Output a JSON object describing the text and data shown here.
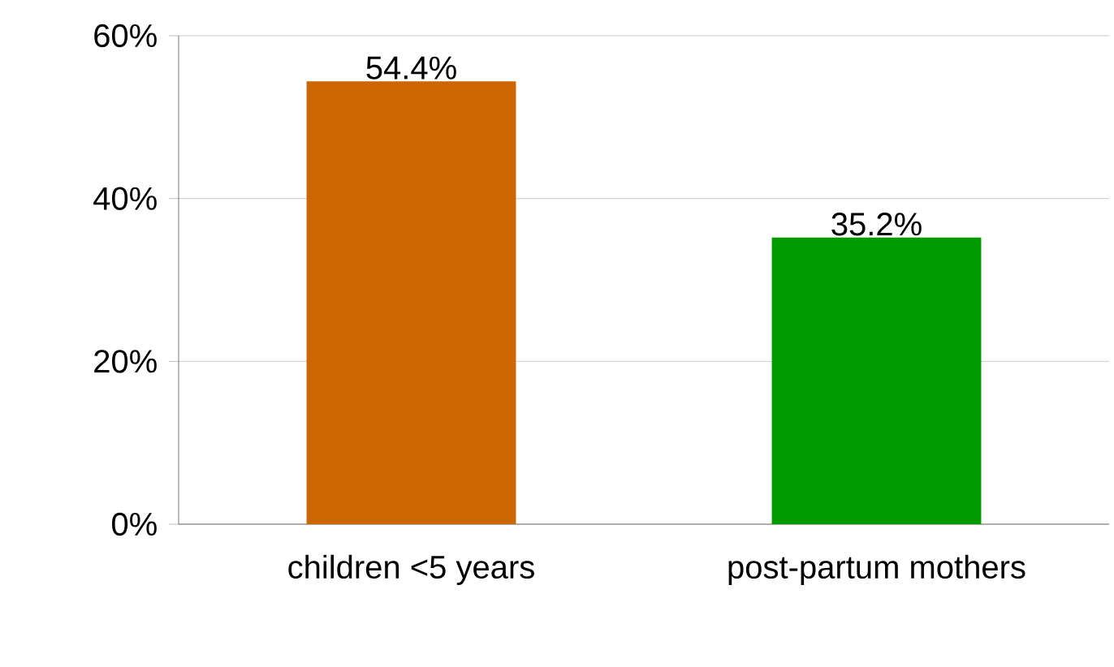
{
  "chart_data": {
    "type": "bar",
    "categories": [
      "children <5 years",
      "post-partum mothers"
    ],
    "values": [
      54.4,
      35.2
    ],
    "colors": [
      "#cc6600",
      "#009900"
    ],
    "value_labels": [
      "54.4%",
      "35.2%"
    ],
    "ylim": [
      0,
      60
    ],
    "yticks": [
      {
        "value": 0,
        "label": "0%"
      },
      {
        "value": 20,
        "label": "20%"
      },
      {
        "value": 40,
        "label": "40%"
      },
      {
        "value": 60,
        "label": "60%"
      }
    ],
    "grid": "y"
  }
}
